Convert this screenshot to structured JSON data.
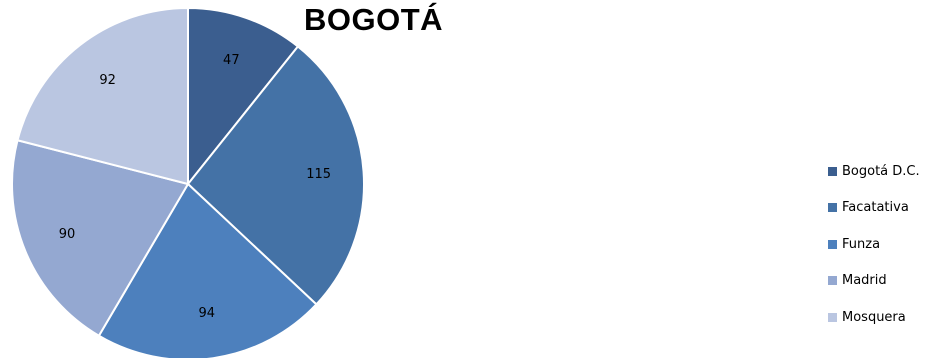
{
  "chart_data": {
    "type": "pie",
    "title": "BOGOTÁ",
    "categories": [
      "Bogotá D.C.",
      "Facatativa",
      "Funza",
      "Madrid",
      "Mosquera"
    ],
    "values": [
      47,
      115,
      94,
      90,
      92
    ],
    "colors": [
      "#3b5e8f",
      "#4472a6",
      "#4d80bd",
      "#94a8d1",
      "#bac6e1"
    ],
    "legend_position": "right",
    "data_labels": true,
    "start_angle_deg": 0,
    "direction": "clockwise"
  }
}
